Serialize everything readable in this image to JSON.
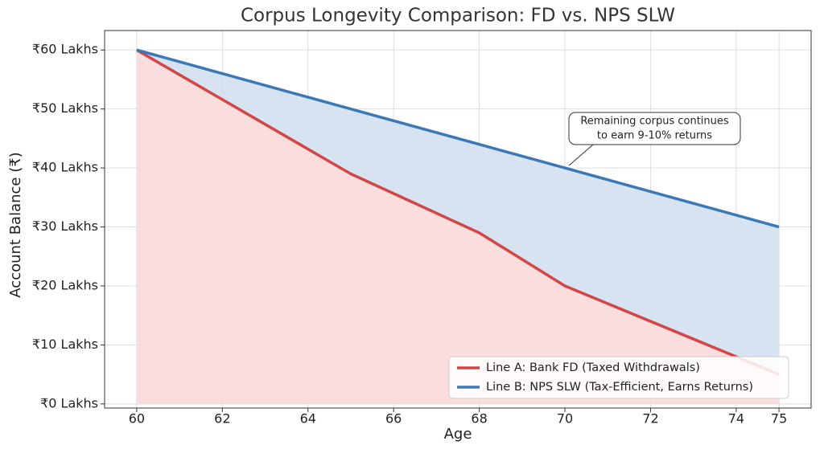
{
  "chart_data": {
    "type": "line",
    "title": "Corpus Longevity Comparison: FD vs. NPS SLW",
    "x_label": "Age",
    "y_label": "Account Balance (₹)",
    "x": [
      60,
      65,
      68,
      70,
      75
    ],
    "series": [
      {
        "name": "Line A: Bank FD (Taxed Withdrawals)",
        "color": "#d64545",
        "fill": "#fadada",
        "values": [
          60,
          39,
          29,
          20,
          5
        ]
      },
      {
        "name": "Line B: NPS SLW (Tax-Efficient, Earns Returns)",
        "color": "#3a78b8",
        "fill": "#d3e0ee",
        "values": [
          60,
          50,
          44,
          40,
          30
        ]
      }
    ],
    "xlim": [
      59.25,
      75.75
    ],
    "xticks": [
      60,
      62,
      64,
      66,
      68,
      70,
      72,
      74,
      75
    ],
    "ylim": [
      -0.7,
      63.3
    ],
    "yticks": [
      {
        "value": 0,
        "label": "₹0 Lakhs"
      },
      {
        "value": 10,
        "label": "₹10 Lakhs"
      },
      {
        "value": 20,
        "label": "₹20 Lakhs"
      },
      {
        "value": 30,
        "label": "₹30 Lakhs"
      },
      {
        "value": 40,
        "label": "₹40 Lakhs"
      },
      {
        "value": 50,
        "label": "₹50 Lakhs"
      },
      {
        "value": 60,
        "label": "₹60 Lakhs"
      }
    ],
    "grid": true,
    "legend": "lower right",
    "annotation": {
      "lines": [
        "Remaining corpus continues",
        "to earn 9-10% returns"
      ],
      "series": 1,
      "point": 3
    }
  }
}
